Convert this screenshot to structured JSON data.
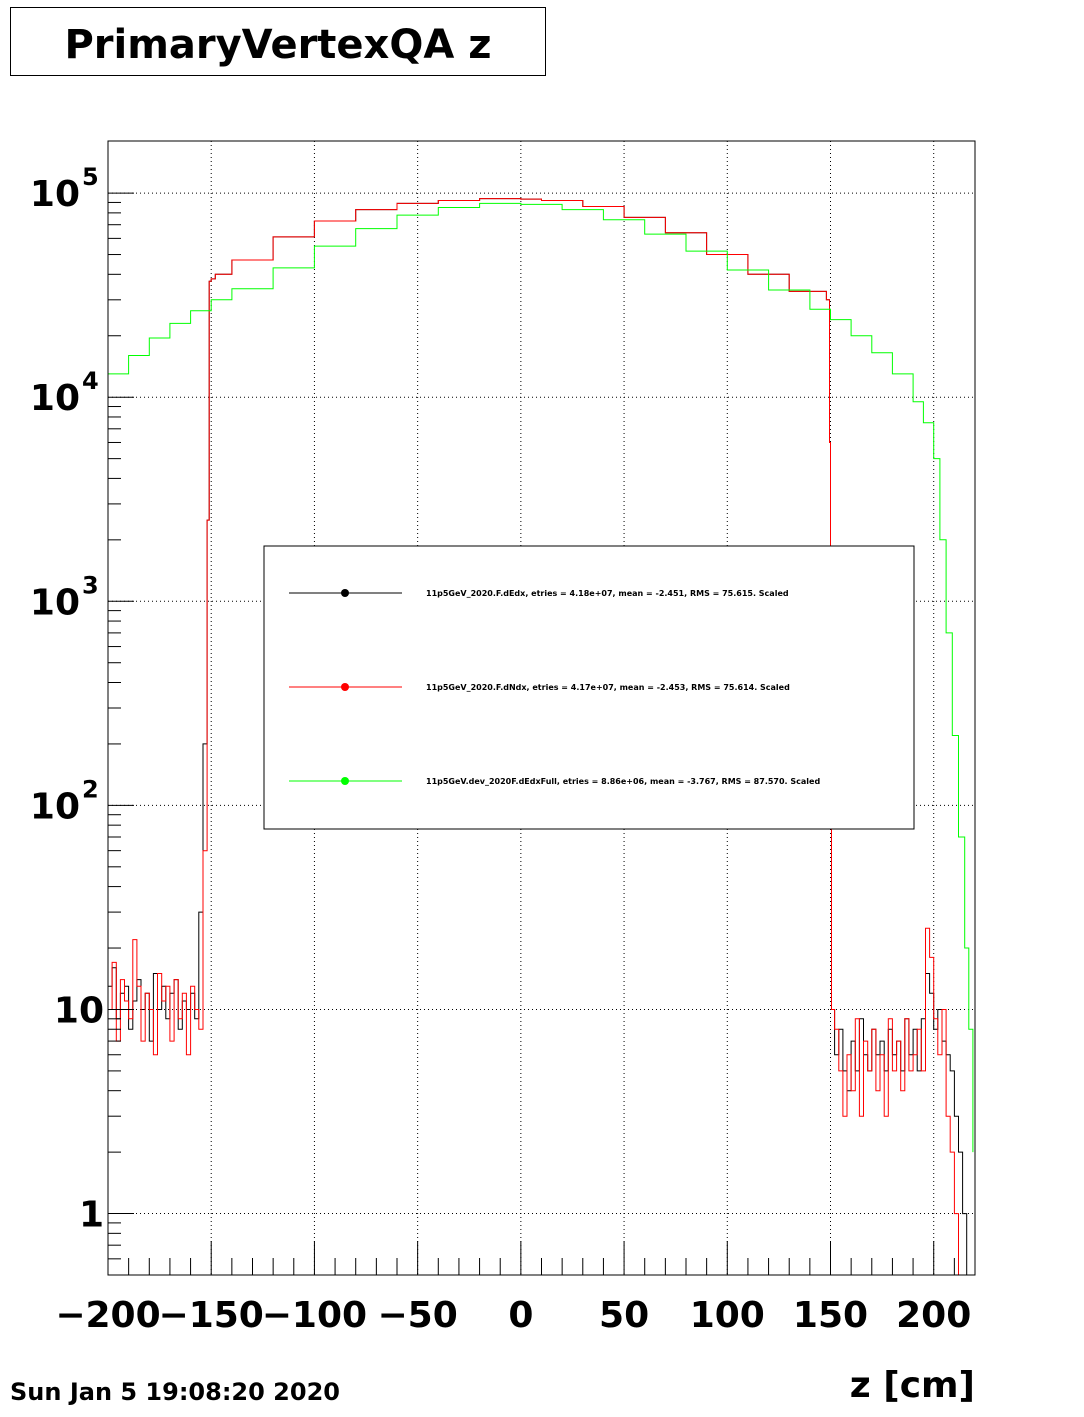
{
  "title": "PrimaryVertexQA z",
  "date": "Sun Jan  5 19:08:20 2020",
  "chart_data": {
    "type": "line",
    "xlabel": "z [cm]",
    "xlim": [
      -200,
      220
    ],
    "ylim": [
      0.5,
      180000
    ],
    "yscale": "log",
    "grid": true,
    "x_tick_labels": [
      "−200",
      "−150",
      "−100",
      "−50",
      "0",
      "50",
      "100",
      "150",
      "200"
    ],
    "x_ticks": [
      -200,
      -150,
      -100,
      -50,
      0,
      50,
      100,
      150,
      200
    ],
    "y_ticks": [
      {
        "value": 1,
        "label": "1",
        "exp": ""
      },
      {
        "value": 10,
        "label": "10",
        "exp": ""
      },
      {
        "value": 100,
        "label": "10",
        "exp": "2"
      },
      {
        "value": 1000,
        "label": "10",
        "exp": "3"
      },
      {
        "value": 10000,
        "label": "10",
        "exp": "4"
      },
      {
        "value": 100000,
        "label": "10",
        "exp": "5"
      }
    ],
    "legend": {
      "placement": "center",
      "entries": [
        {
          "label": "11p5GeV_2020.F.dEdx, etries =   4.18e+07, mean =  -2.451, RMS =  75.615. Scaled",
          "color": "#000000"
        },
        {
          "label": "11p5GeV_2020.F.dNdx, etries =   4.17e+07, mean =  -2.453, RMS =  75.614. Scaled",
          "color": "#ff0000"
        },
        {
          "label": "11p5GeV.dev_2020F.dEdxFull, etries =   8.86e+06, mean =  -3.767, RMS =  87.570. Scaled",
          "color": "#00ff00"
        }
      ]
    },
    "series": [
      {
        "color": "#000000",
        "x": [
          -200,
          -198,
          -196,
          -194,
          -192,
          -190,
          -188,
          -186,
          -184,
          -182,
          -180,
          -178,
          -176,
          -174,
          -172,
          -170,
          -168,
          -166,
          -164,
          -162,
          -160,
          -158,
          -156,
          -154,
          -152,
          -151,
          -150,
          -148,
          -140,
          -120,
          -100,
          -80,
          -60,
          -40,
          -20,
          -5,
          0,
          10,
          30,
          50,
          70,
          90,
          110,
          130,
          148,
          149.5,
          150,
          150.5,
          152,
          154,
          156,
          158,
          160,
          162,
          164,
          166,
          168,
          170,
          172,
          174,
          176,
          178,
          180,
          182,
          184,
          186,
          188,
          190,
          192,
          194,
          196,
          198,
          200,
          202,
          204,
          206,
          208,
          210,
          212,
          214,
          216,
          218
        ],
        "y": [
          13,
          16,
          9,
          12,
          13,
          8,
          11,
          14,
          10,
          12,
          7,
          15,
          10,
          13,
          9,
          12,
          14,
          8,
          11,
          10,
          12,
          9,
          30,
          200,
          2500,
          37000,
          38000,
          40000,
          47000,
          61000,
          73000,
          83000,
          89000,
          92000,
          94000,
          94000,
          93500,
          92000,
          86000,
          76000,
          64000,
          50000,
          40000,
          33000,
          30000,
          6000,
          80,
          10,
          6,
          8,
          5,
          4,
          7,
          5,
          9,
          6,
          5,
          8,
          6,
          7,
          5,
          8,
          6,
          7,
          5,
          9,
          6,
          8,
          5,
          9,
          15,
          12,
          8,
          10,
          7,
          6,
          5,
          3,
          2,
          1,
          0.5,
          0.5
        ]
      },
      {
        "color": "#ff0000",
        "x": [
          -200,
          -198,
          -196,
          -194,
          -192,
          -190,
          -188,
          -186,
          -184,
          -182,
          -180,
          -178,
          -176,
          -174,
          -172,
          -170,
          -168,
          -166,
          -164,
          -162,
          -160,
          -158,
          -156,
          -154,
          -152,
          -151,
          -150,
          -148,
          -140,
          -120,
          -100,
          -80,
          -60,
          -40,
          -20,
          -5,
          0,
          10,
          30,
          50,
          70,
          90,
          110,
          130,
          148,
          149.5,
          150,
          150.5,
          152,
          154,
          156,
          158,
          160,
          162,
          164,
          166,
          168,
          170,
          172,
          174,
          176,
          178,
          180,
          182,
          184,
          186,
          188,
          190,
          192,
          194,
          196,
          198,
          200,
          202,
          204,
          206,
          208,
          210,
          212,
          214,
          216,
          218
        ],
        "y": [
          10,
          17,
          7,
          14,
          11,
          9,
          22,
          13,
          7,
          12,
          10,
          6,
          15,
          11,
          13,
          7,
          14,
          9,
          12,
          6,
          13,
          10,
          8,
          60,
          2500,
          37000,
          38000,
          40000,
          47000,
          61000,
          73000,
          83000,
          89000,
          92000,
          94000,
          94000,
          93500,
          92000,
          86000,
          76000,
          64000,
          50000,
          40000,
          33000,
          30000,
          6000,
          80,
          10,
          8,
          5,
          3,
          6,
          4,
          9,
          3,
          7,
          5,
          8,
          4,
          6,
          3,
          9,
          5,
          7,
          4,
          9,
          5,
          6,
          8,
          5,
          25,
          18,
          9,
          6,
          10,
          3,
          2,
          1,
          0.5,
          0.5,
          0.5,
          0.5
        ]
      },
      {
        "color": "#00ff00",
        "x": [
          -200,
          -190,
          -180,
          -170,
          -160,
          -150,
          -140,
          -120,
          -100,
          -80,
          -60,
          -40,
          -20,
          0,
          20,
          40,
          60,
          80,
          100,
          120,
          140,
          150,
          160,
          170,
          180,
          190,
          195,
          200,
          203,
          206,
          209,
          212,
          215,
          217,
          219
        ],
        "y": [
          13000,
          16000,
          19500,
          23000,
          26500,
          30000,
          34000,
          43000,
          55000,
          67000,
          78000,
          85000,
          89000,
          88000,
          83000,
          74000,
          63000,
          52000,
          42000,
          33500,
          27000,
          24000,
          20000,
          16500,
          13000,
          9500,
          7500,
          5000,
          2000,
          700,
          220,
          70,
          20,
          8,
          2
        ]
      }
    ]
  }
}
